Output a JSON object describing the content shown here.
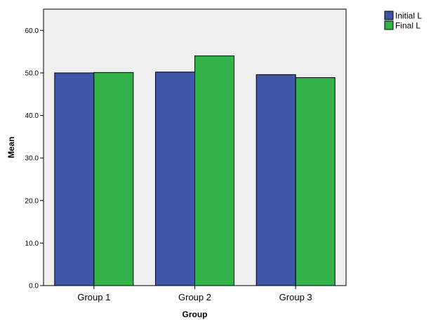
{
  "chart_data": {
    "type": "bar",
    "xlabel": "Group",
    "ylabel": "Mean",
    "ylim": [
      0,
      65
    ],
    "yticks": [
      "0.0",
      "10.0",
      "20.0",
      "30.0",
      "40.0",
      "50.0",
      "60.0"
    ],
    "categories": [
      "Group 1",
      "Group 2",
      "Group 3"
    ],
    "series": [
      {
        "name": "Initial L",
        "values": [
          50.0,
          50.2,
          49.6
        ],
        "color": "#3f55a8"
      },
      {
        "name": "Final L",
        "values": [
          50.1,
          54.0,
          48.9
        ],
        "color": "#32b34a"
      }
    ],
    "plot_background": "#efefef",
    "grid": false,
    "legend_position": "top-right"
  }
}
